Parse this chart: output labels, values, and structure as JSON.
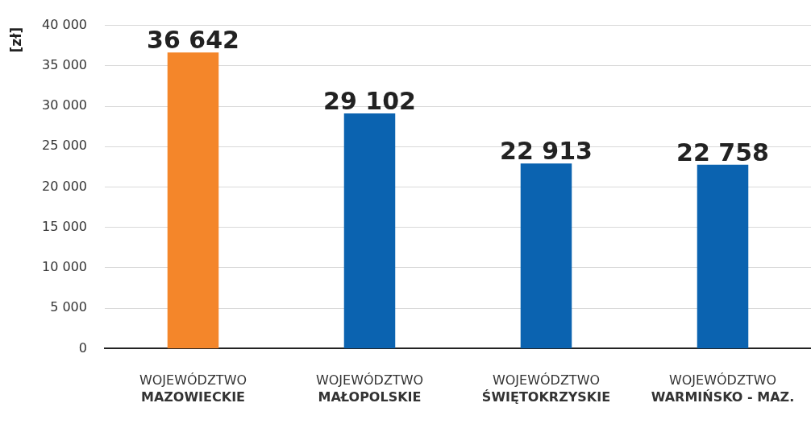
{
  "chart_data": {
    "type": "bar",
    "ylabel": "[zł]",
    "categories": [
      "WOJEWÓDZTWO\nMAZOWIECKIE",
      "WOJEWÓDZTWO\nMAŁOPOLSKIE",
      "WOJEWÓDZTWO\nŚWIĘTOKRZYSKIE",
      "WOJEWÓDZTWO\nWARMIŃSKO - MAZ."
    ],
    "values": [
      36642,
      29102,
      22913,
      22758
    ],
    "colors": [
      "#f4862a",
      "#0b63b0",
      "#0b63b0",
      "#0b63b0"
    ],
    "value_labels": [
      "36 642",
      "29 102",
      "22 913",
      "22 758"
    ],
    "ylim": [
      0,
      40000
    ],
    "yticks": [
      {
        "value": 0,
        "label": "0"
      },
      {
        "value": 5000,
        "label": "5 000"
      },
      {
        "value": 10000,
        "label": "10 000"
      },
      {
        "value": 15000,
        "label": "15 000"
      },
      {
        "value": 20000,
        "label": "20 000"
      },
      {
        "value": 25000,
        "label": "25 000"
      },
      {
        "value": 30000,
        "label": "30 000"
      },
      {
        "value": 35000,
        "label": "35 000"
      },
      {
        "value": 40000,
        "label": "40 000"
      }
    ],
    "grid": "y"
  }
}
